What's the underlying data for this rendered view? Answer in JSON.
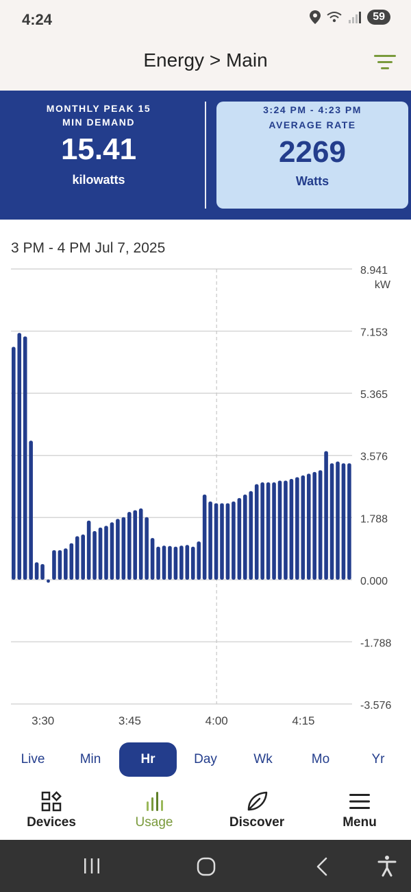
{
  "status": {
    "time": "4:24",
    "battery": "59"
  },
  "header": {
    "title": "Energy > Main"
  },
  "summary": {
    "left": {
      "label_line1": "MONTHLY PEAK 15",
      "label_line2": "MIN DEMAND",
      "value": "15.41",
      "unit": "kilowatts"
    },
    "right": {
      "label_line1": "3:24 PM - 4:23 PM",
      "label_line2": "AVERAGE RATE",
      "value": "2269",
      "unit": "Watts"
    }
  },
  "chart_title": "3 PM - 4 PM Jul 7, 2025",
  "chart_data": {
    "type": "bar",
    "ylabel": "kW",
    "ylim": [
      -3.576,
      8.941
    ],
    "y_ticks": [
      "8.941",
      "7.153",
      "5.365",
      "3.576",
      "1.788",
      "0.000",
      "-1.788",
      "-3.576"
    ],
    "y_tick_values": [
      8.941,
      7.153,
      5.365,
      3.576,
      1.788,
      0.0,
      -1.788,
      -3.576
    ],
    "x_ticks": [
      "3:30",
      "3:45",
      "4:00",
      "4:15"
    ],
    "x_tick_minutes": [
      30,
      45,
      60,
      75
    ],
    "current_marker_minute": 60,
    "x_start_minute": 24,
    "values": [
      6.7,
      7.1,
      7.0,
      4.0,
      0.5,
      0.45,
      -0.05,
      0.85,
      0.85,
      0.9,
      1.05,
      1.25,
      1.3,
      1.7,
      1.4,
      1.5,
      1.55,
      1.65,
      1.75,
      1.8,
      1.95,
      2.0,
      2.05,
      1.8,
      1.2,
      0.95,
      0.98,
      0.97,
      0.95,
      0.98,
      1.0,
      0.95,
      1.1,
      2.45,
      2.25,
      2.2,
      2.2,
      2.2,
      2.25,
      2.35,
      2.45,
      2.55,
      2.75,
      2.8,
      2.8,
      2.8,
      2.85,
      2.85,
      2.9,
      2.95,
      3.0,
      3.05,
      3.1,
      3.15,
      3.7,
      3.35,
      3.4,
      3.35,
      3.35
    ],
    "bar_color": "#233d8c"
  },
  "periods": {
    "items": [
      "Live",
      "Min",
      "Hr",
      "Day",
      "Wk",
      "Mo",
      "Yr"
    ],
    "active": "Hr"
  },
  "nav": {
    "devices": "Devices",
    "usage": "Usage",
    "discover": "Discover",
    "menu": "Menu"
  },
  "colors": {
    "primary": "#233d8c",
    "accent_green": "#7a9a3c",
    "card_light": "#c9dff5"
  }
}
